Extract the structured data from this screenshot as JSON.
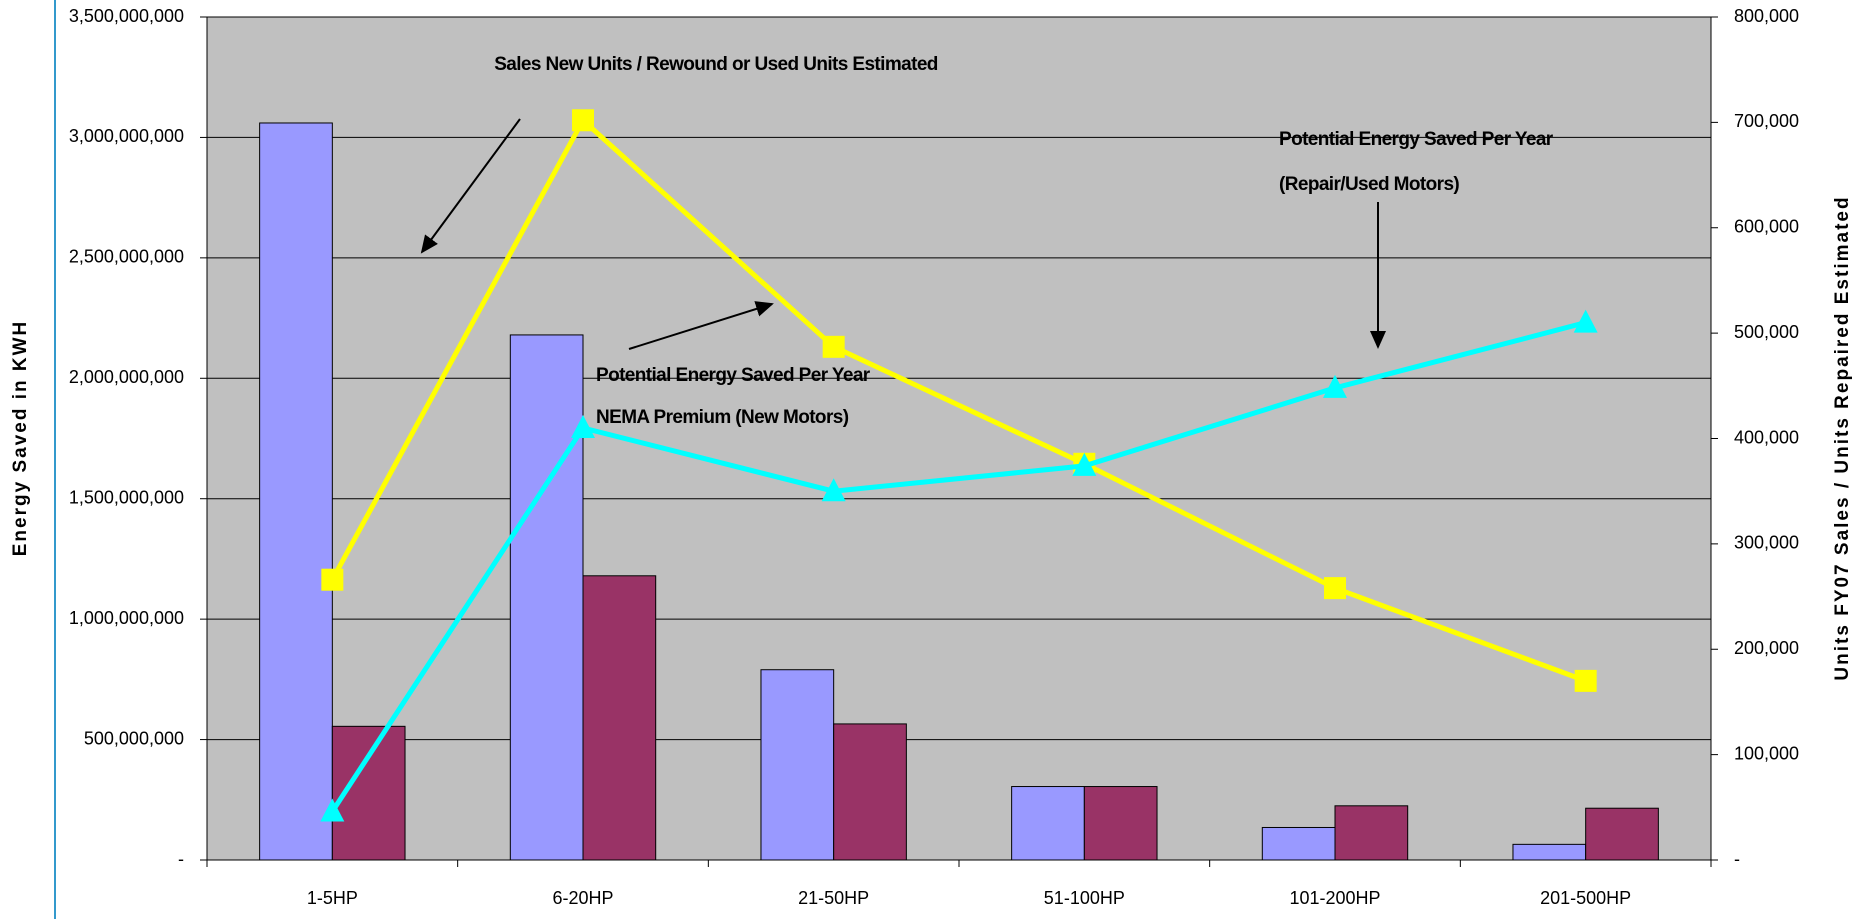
{
  "chart_data": {
    "type": "bar",
    "categories": [
      "1-5HP",
      "6-20HP",
      "21-50HP",
      "51-100HP",
      "101-200HP",
      "201-500HP"
    ],
    "y_label": "Energy Saved in KWH",
    "y2_label": "Units FY07 Sales / Units Repaired Estimated",
    "ylim": [
      0,
      3500000000
    ],
    "yticks": [
      {
        "value": 0,
        "label": "-"
      },
      {
        "value": 500000000,
        "label": "500,000,000"
      },
      {
        "value": 1000000000,
        "label": "1,000,000,000"
      },
      {
        "value": 1500000000,
        "label": "1,500,000,000"
      },
      {
        "value": 2000000000,
        "label": "2,000,000,000"
      },
      {
        "value": 2500000000,
        "label": "2,500,000,000"
      },
      {
        "value": 3000000000,
        "label": "3,000,000,000"
      },
      {
        "value": 3500000000,
        "label": "3,500,000,000"
      }
    ],
    "y2lim": [
      0,
      800000
    ],
    "y2ticks": [
      {
        "value": 0,
        "label": "-"
      },
      {
        "value": 100000,
        "label": "100,000"
      },
      {
        "value": 200000,
        "label": "200,000"
      },
      {
        "value": 300000,
        "label": "300,000"
      },
      {
        "value": 400000,
        "label": "400,000"
      },
      {
        "value": 500000,
        "label": "500,000"
      },
      {
        "value": 600000,
        "label": "600,000"
      },
      {
        "value": 700000,
        "label": "700,000"
      },
      {
        "value": 800000,
        "label": "800,000"
      }
    ],
    "grid": true,
    "series": [
      {
        "type": "bar",
        "color": "#9999ff",
        "values": [
          3060000000,
          2180000000,
          790000000,
          305000000,
          135000000,
          65000000
        ]
      },
      {
        "type": "bar",
        "color": "#993366",
        "values": [
          555000000,
          1180000000,
          565000000,
          305000000,
          225000000,
          215000000
        ]
      },
      {
        "type": "line",
        "axis": "y2",
        "marker": "square",
        "color": "#ffff00",
        "values": [
          266000,
          702000,
          487000,
          376000,
          258000,
          170000
        ]
      },
      {
        "type": "line",
        "axis": "y2",
        "marker": "triangle",
        "color": "#00ffff",
        "values": [
          46000,
          410000,
          350000,
          374000,
          448000,
          510000
        ]
      }
    ],
    "annotations": [
      {
        "lines": [
          "Sales New Units / Rewound or Used Units Estimated"
        ]
      },
      {
        "lines": [
          "Potential Energy Saved Per Year",
          "(Repair/Used Motors)"
        ]
      },
      {
        "lines": [
          "Potential Energy Saved Per Year",
          "NEMA Premium (New Motors)"
        ]
      }
    ]
  }
}
